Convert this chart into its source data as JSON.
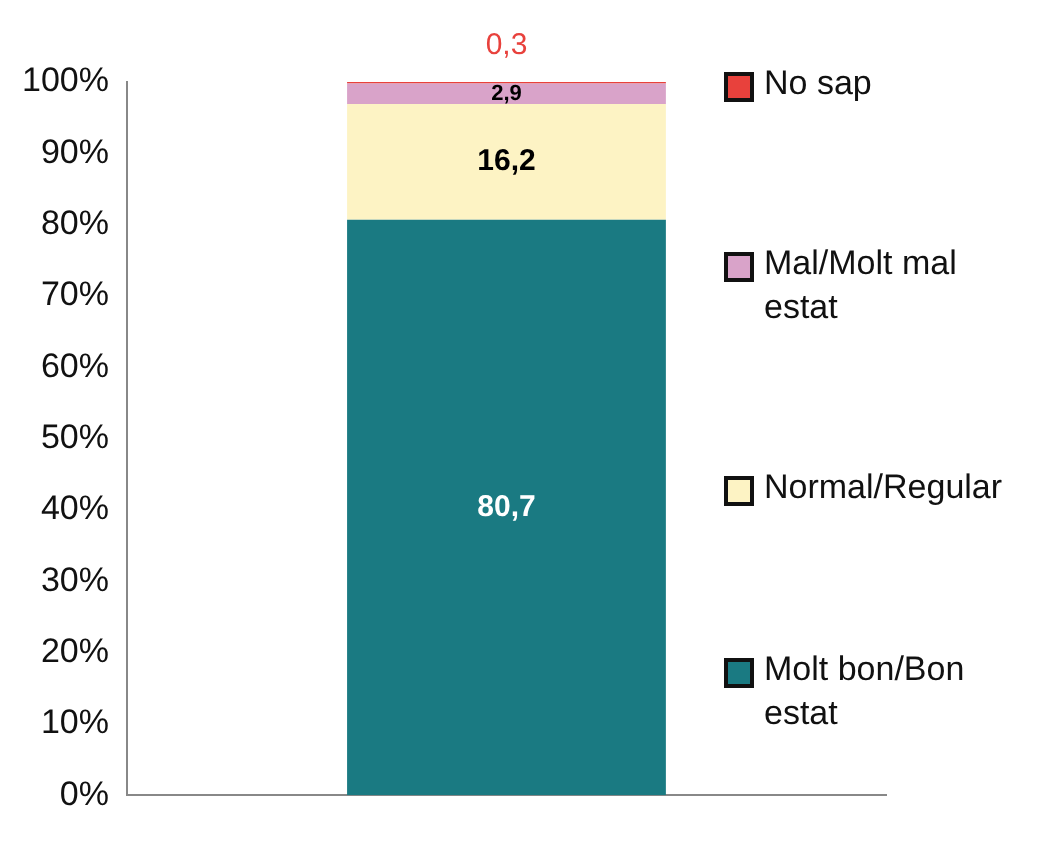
{
  "chart_data": {
    "type": "bar",
    "stacked": true,
    "categories": [
      null
    ],
    "series": [
      {
        "name": "Molt bon/Bon estat",
        "color": "#1a7a82",
        "values": [
          80.7
        ],
        "value_labels": [
          "80,7"
        ]
      },
      {
        "name": "Normal/Regular",
        "color": "#fdf3c4",
        "values": [
          16.2
        ],
        "value_labels": [
          "16,2"
        ]
      },
      {
        "name": "Mal/Molt mal estat",
        "color": "#d9a3c9",
        "values": [
          2.9
        ],
        "value_labels": [
          "2,9"
        ]
      },
      {
        "name": "No sap",
        "color": "#e8413c",
        "values": [
          0.3
        ],
        "value_labels": [
          "0,3"
        ]
      }
    ],
    "ylim": [
      0,
      100
    ],
    "yticks": [
      {
        "value": 0,
        "label": "0%"
      },
      {
        "value": 10,
        "label": "10%"
      },
      {
        "value": 20,
        "label": "20%"
      },
      {
        "value": 30,
        "label": "30%"
      },
      {
        "value": 40,
        "label": "40%"
      },
      {
        "value": 50,
        "label": "50%"
      },
      {
        "value": 60,
        "label": "60%"
      },
      {
        "value": 70,
        "label": "70%"
      },
      {
        "value": 80,
        "label": "80%"
      },
      {
        "value": 90,
        "label": "90%"
      },
      {
        "value": 100,
        "label": "100%"
      }
    ],
    "grid": false,
    "legend": "right"
  }
}
